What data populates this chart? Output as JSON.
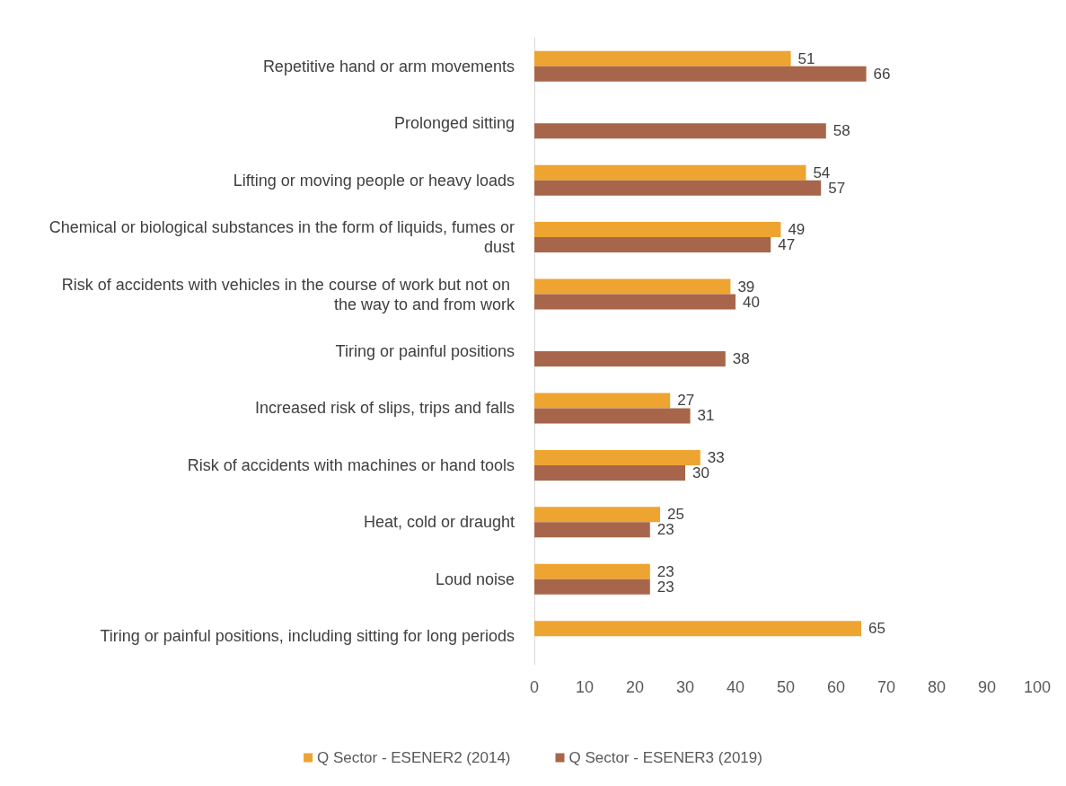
{
  "chart_data": {
    "type": "bar",
    "orientation": "horizontal",
    "categories": [
      "Repetitive hand or arm movements",
      "Prolonged sitting",
      "Lifting or moving people or heavy loads",
      "Chemical or biological substances in the form of liquids, fumes or dust",
      "Risk of accidents with vehicles in the course of work but not on the way to and from work",
      "Tiring or painful positions",
      "Increased risk of slips, trips and falls",
      "Risk of accidents with machines or hand tools",
      "Heat, cold or draught",
      "Loud noise",
      "Tiring or painful positions, including sitting for long periods"
    ],
    "series": [
      {
        "name": "Q Sector - ESENER2 (2014)",
        "color": "#eea431",
        "values": [
          51,
          null,
          54,
          49,
          39,
          null,
          27,
          33,
          25,
          23,
          65
        ]
      },
      {
        "name": "Q Sector - ESENER3 (2019)",
        "color": "#a7664b",
        "values": [
          66,
          58,
          57,
          47,
          40,
          38,
          31,
          30,
          23,
          23,
          null
        ]
      }
    ],
    "xlim": [
      0,
      100
    ],
    "xticks": [
      0,
      10,
      20,
      30,
      40,
      50,
      60,
      70,
      80,
      90,
      100
    ],
    "grid": false,
    "legend": "bottom",
    "data_labels": true
  }
}
